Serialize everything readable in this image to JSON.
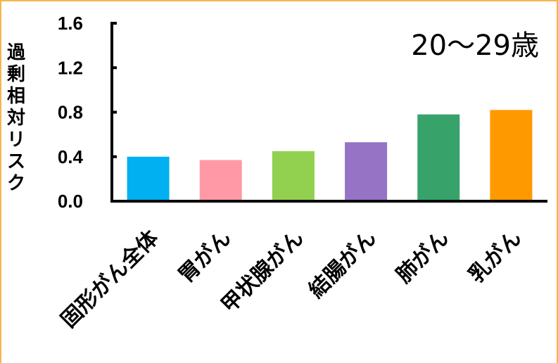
{
  "chart_data": {
    "type": "bar",
    "title": "",
    "annotation": "20～29歳",
    "xlabel": "",
    "ylabel": "過剰相対リスク",
    "ylim": [
      0.0,
      1.6
    ],
    "yticks": [
      "0.0",
      "0.4",
      "0.8",
      "1.2",
      "1.6"
    ],
    "ytick_values": [
      0.0,
      0.4,
      0.8,
      1.2,
      1.6
    ],
    "grid": false,
    "legend": "none",
    "categories": [
      "固形がん全体",
      "胃がん",
      "甲状腺がん",
      "結腸がん",
      "肺がん",
      "乳がん"
    ],
    "values": [
      0.4,
      0.37,
      0.45,
      0.53,
      0.78,
      0.82
    ],
    "colors": [
      "#00b0f0",
      "#ff99a6",
      "#92d050",
      "#9673c4",
      "#37a36b",
      "#ff9900"
    ]
  }
}
